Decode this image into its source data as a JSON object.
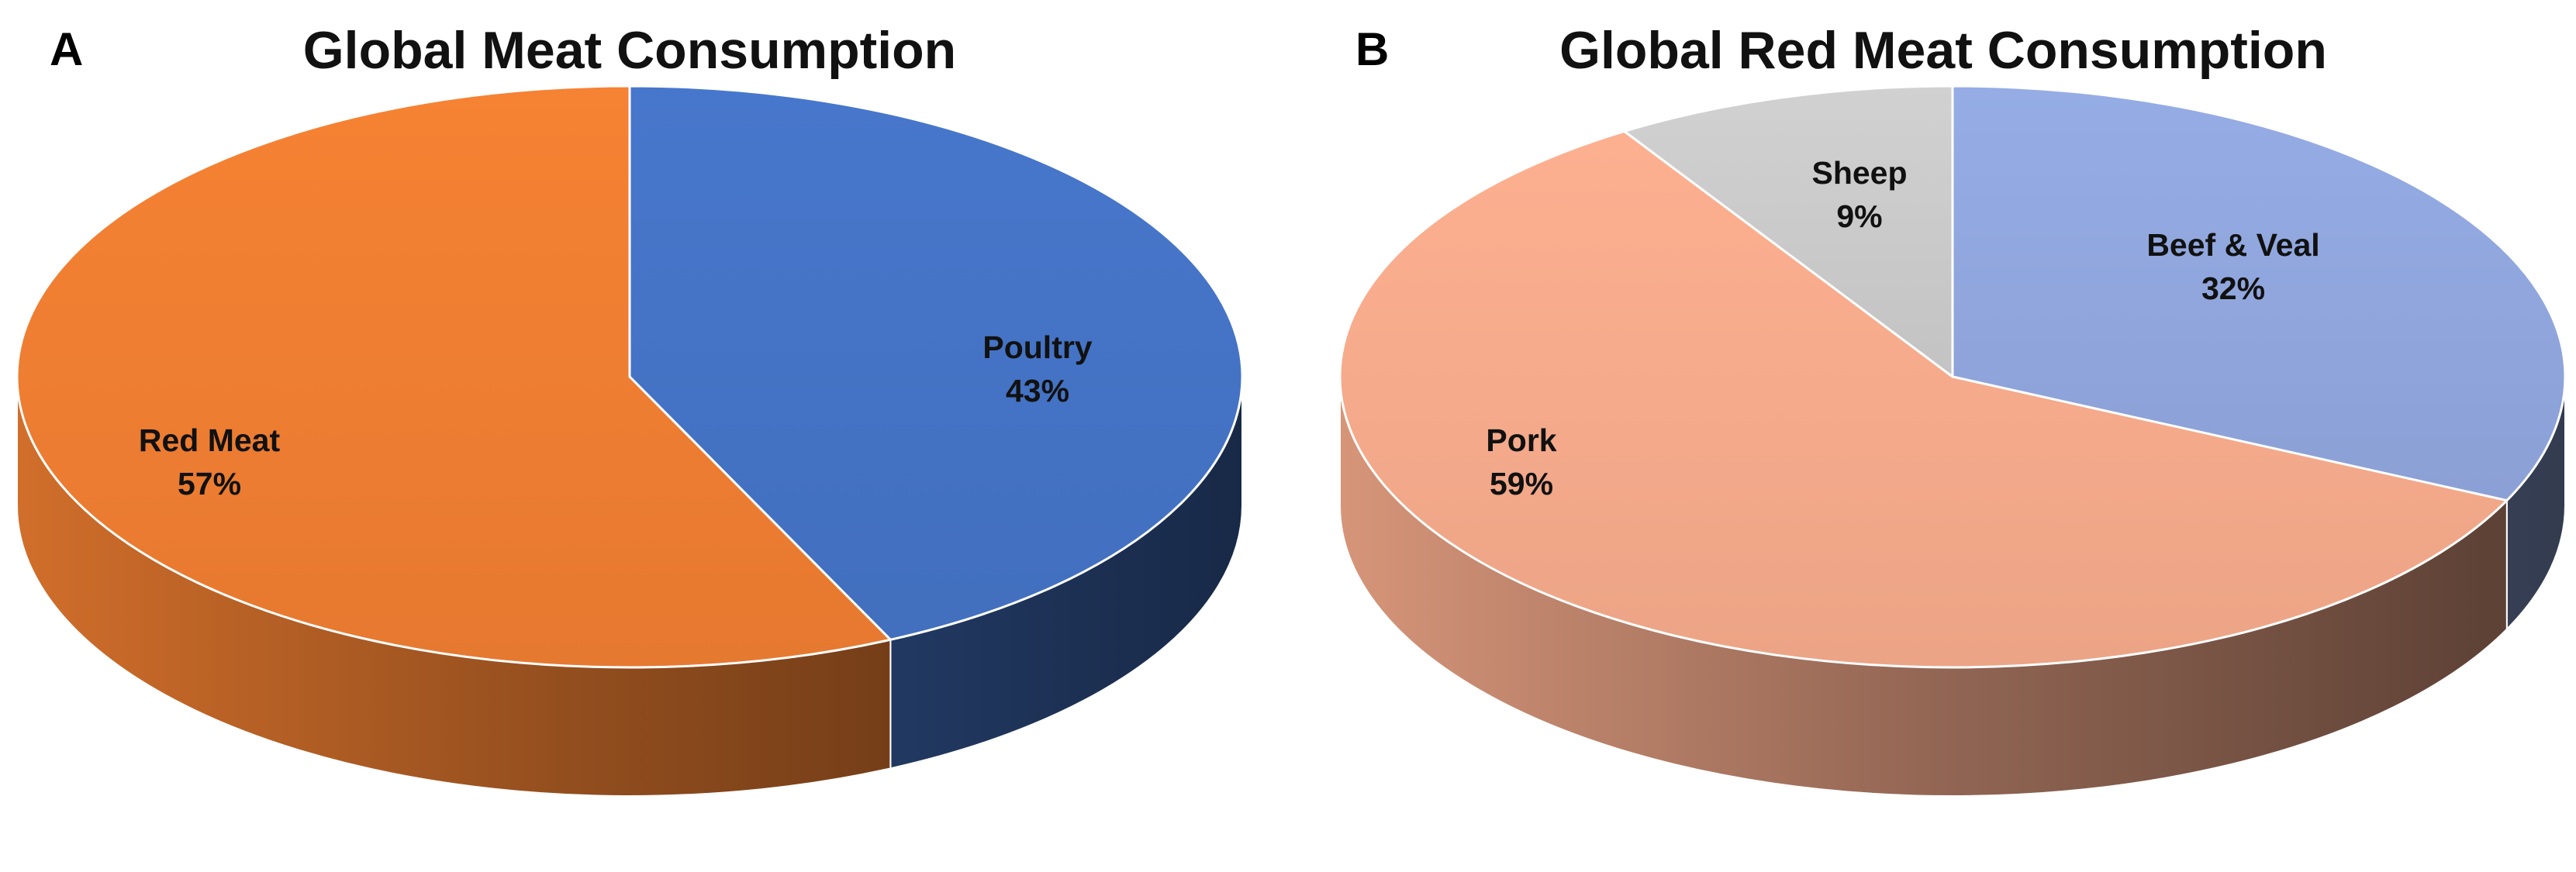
{
  "chart_data": [
    {
      "type": "pie",
      "panel": "A",
      "title": "Global Meat Consumption",
      "start_angle_deg": 0,
      "direction": "clockwise",
      "slices": [
        {
          "name": "Poultry",
          "value": 43,
          "label_value": "43%",
          "color": "#4472C4"
        },
        {
          "name": "Red Meat",
          "value": 57,
          "label_value": "57%",
          "color": "#ED7D31"
        }
      ]
    },
    {
      "type": "pie",
      "panel": "B",
      "title": "Global Red Meat Consumption",
      "start_angle_deg": 0,
      "direction": "clockwise",
      "slices": [
        {
          "name": "Beef & Veal",
          "value": 32,
          "label_value": "32%",
          "color": "#8FA5DC"
        },
        {
          "name": "Pork",
          "value": 59,
          "label_value": "59%",
          "color": "#F3A98A"
        },
        {
          "name": "Sheep",
          "value": 9,
          "label_value": "9%",
          "color": "#C9C9C9"
        }
      ]
    }
  ]
}
